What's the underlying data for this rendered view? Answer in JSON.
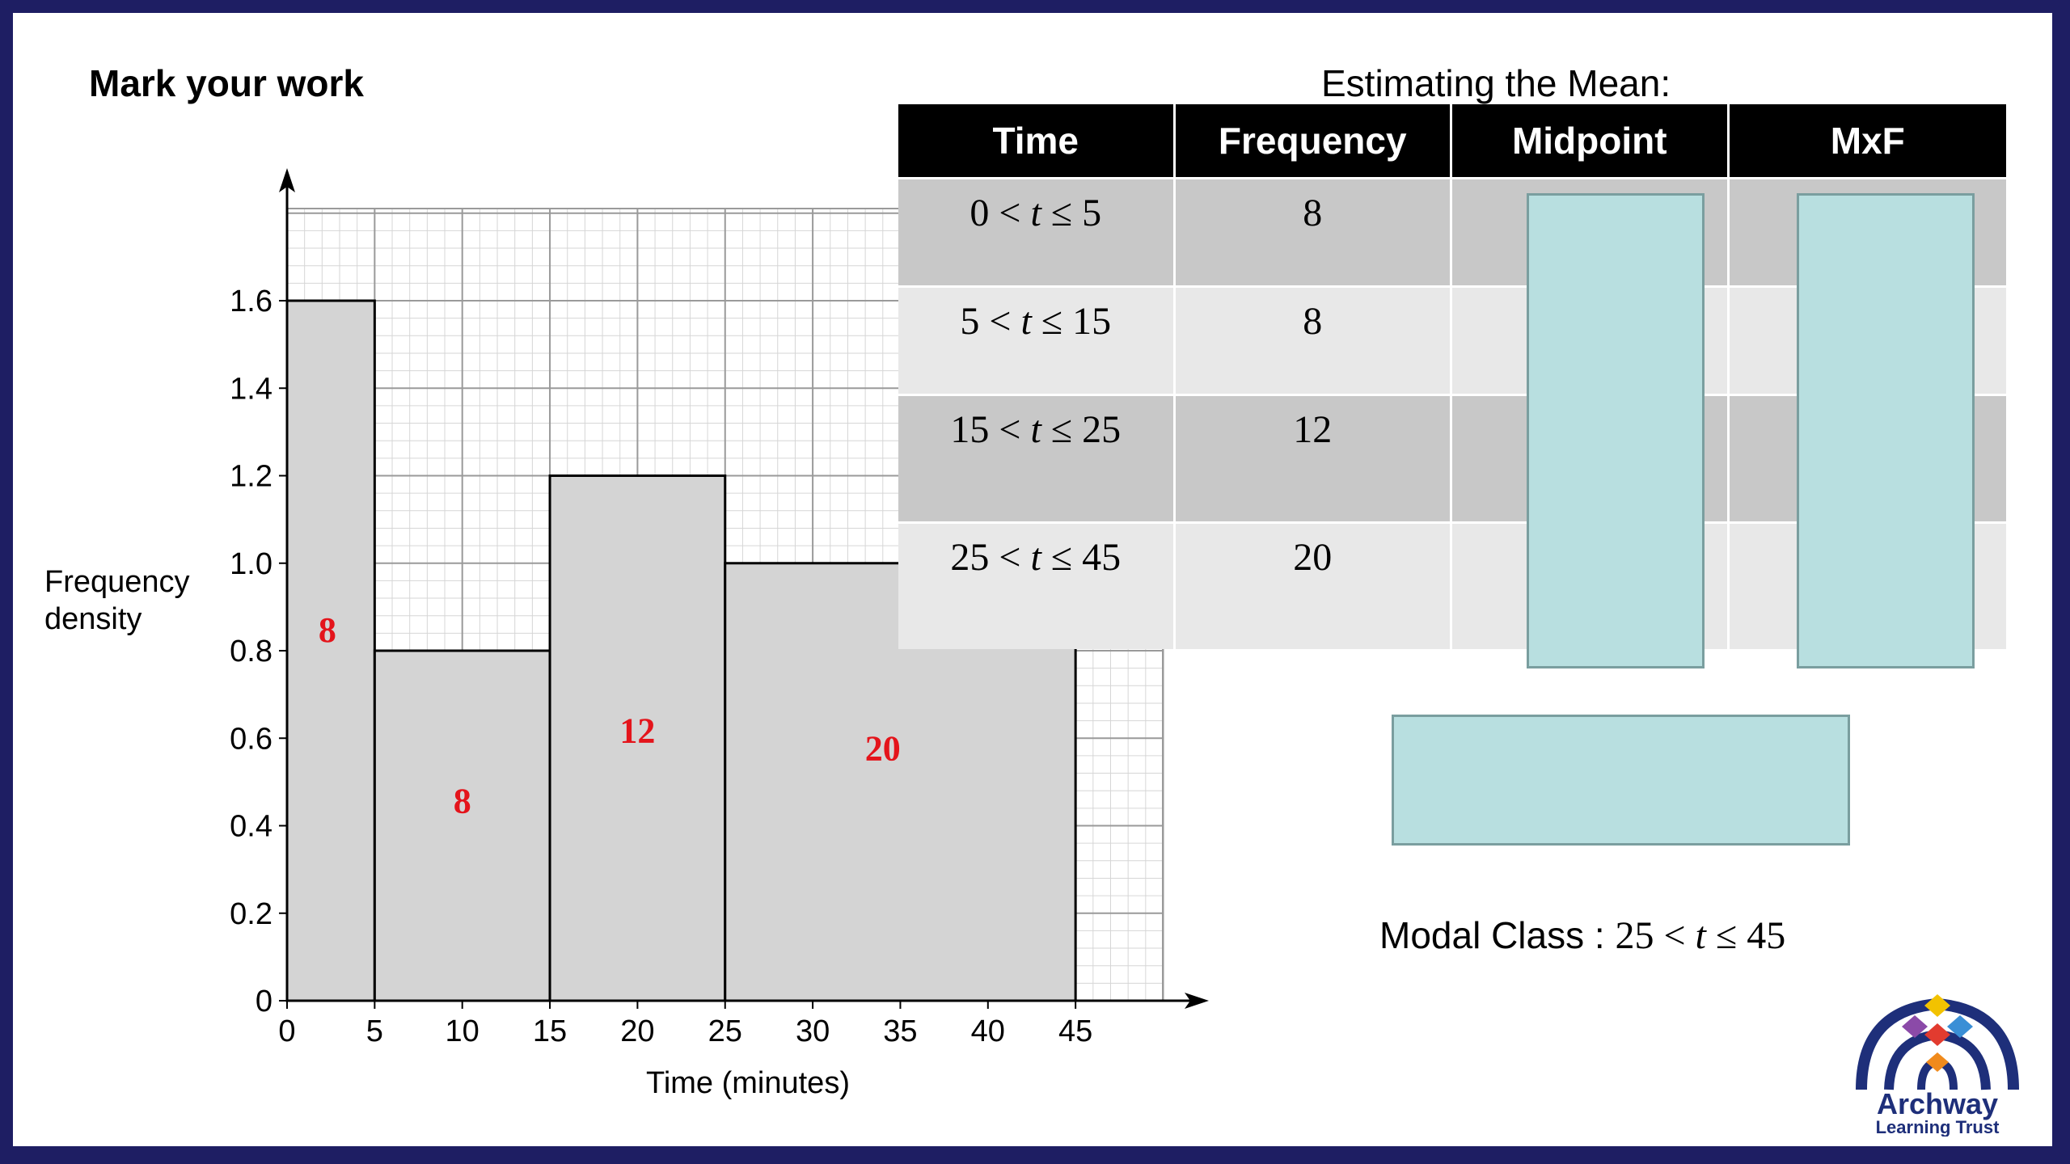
{
  "headings": {
    "left": "Mark your work",
    "right": "Estimating the Mean:"
  },
  "chart_data": {
    "type": "bar",
    "subtype": "histogram",
    "xlabel": "Time (minutes)",
    "ylabel": "Frequency density",
    "xlim": [
      0,
      50
    ],
    "ylim": [
      0,
      1.8
    ],
    "x_ticks": [
      0,
      5,
      10,
      15,
      20,
      25,
      30,
      35,
      40,
      45
    ],
    "y_ticks": [
      0,
      0.2,
      0.4,
      0.6,
      0.8,
      1.0,
      1.2,
      1.4,
      1.6
    ],
    "y_tick_labels": [
      "0",
      "0.2",
      "0.4",
      "0.6",
      "0.8",
      "1.0",
      "1.2",
      "1.4",
      "1.6"
    ],
    "grid": true,
    "bars": [
      {
        "x0": 0,
        "x1": 5,
        "frequency_density": 1.6,
        "label": "8",
        "label_x": 2.3,
        "label_y": 0.82
      },
      {
        "x0": 5,
        "x1": 15,
        "frequency_density": 0.8,
        "label": "8",
        "label_x": 10,
        "label_y": 0.43
      },
      {
        "x0": 15,
        "x1": 25,
        "frequency_density": 1.2,
        "label": "12",
        "label_x": 20,
        "label_y": 0.59
      },
      {
        "x0": 25,
        "x1": 45,
        "frequency_density": 1.0,
        "label": "20",
        "label_x": 34,
        "label_y": 0.55
      }
    ]
  },
  "table": {
    "headers": [
      "Time",
      "Frequency",
      "Midpoint",
      "MxF"
    ],
    "rows": [
      {
        "lo": "0",
        "hi": "5",
        "frequency": "8"
      },
      {
        "lo": "5",
        "hi": "15",
        "frequency": "8"
      },
      {
        "lo": "15",
        "hi": "25",
        "frequency": "12"
      },
      {
        "lo": "25",
        "hi": "45",
        "frequency": "20"
      }
    ],
    "symbols": {
      "lt": "<",
      "var": "t",
      "le": "≤"
    }
  },
  "modal": {
    "label": "Modal Class : ",
    "lo": "25",
    "hi": "45"
  },
  "colors": {
    "bar_fill": "#d4d4d4",
    "bar_label": "#e4141b",
    "answer_box": "#b8dfe0",
    "table_header": "#000000",
    "frame": "#1e1e63"
  },
  "logo": {
    "line1": "Archway",
    "line2": "Learning Trust"
  }
}
